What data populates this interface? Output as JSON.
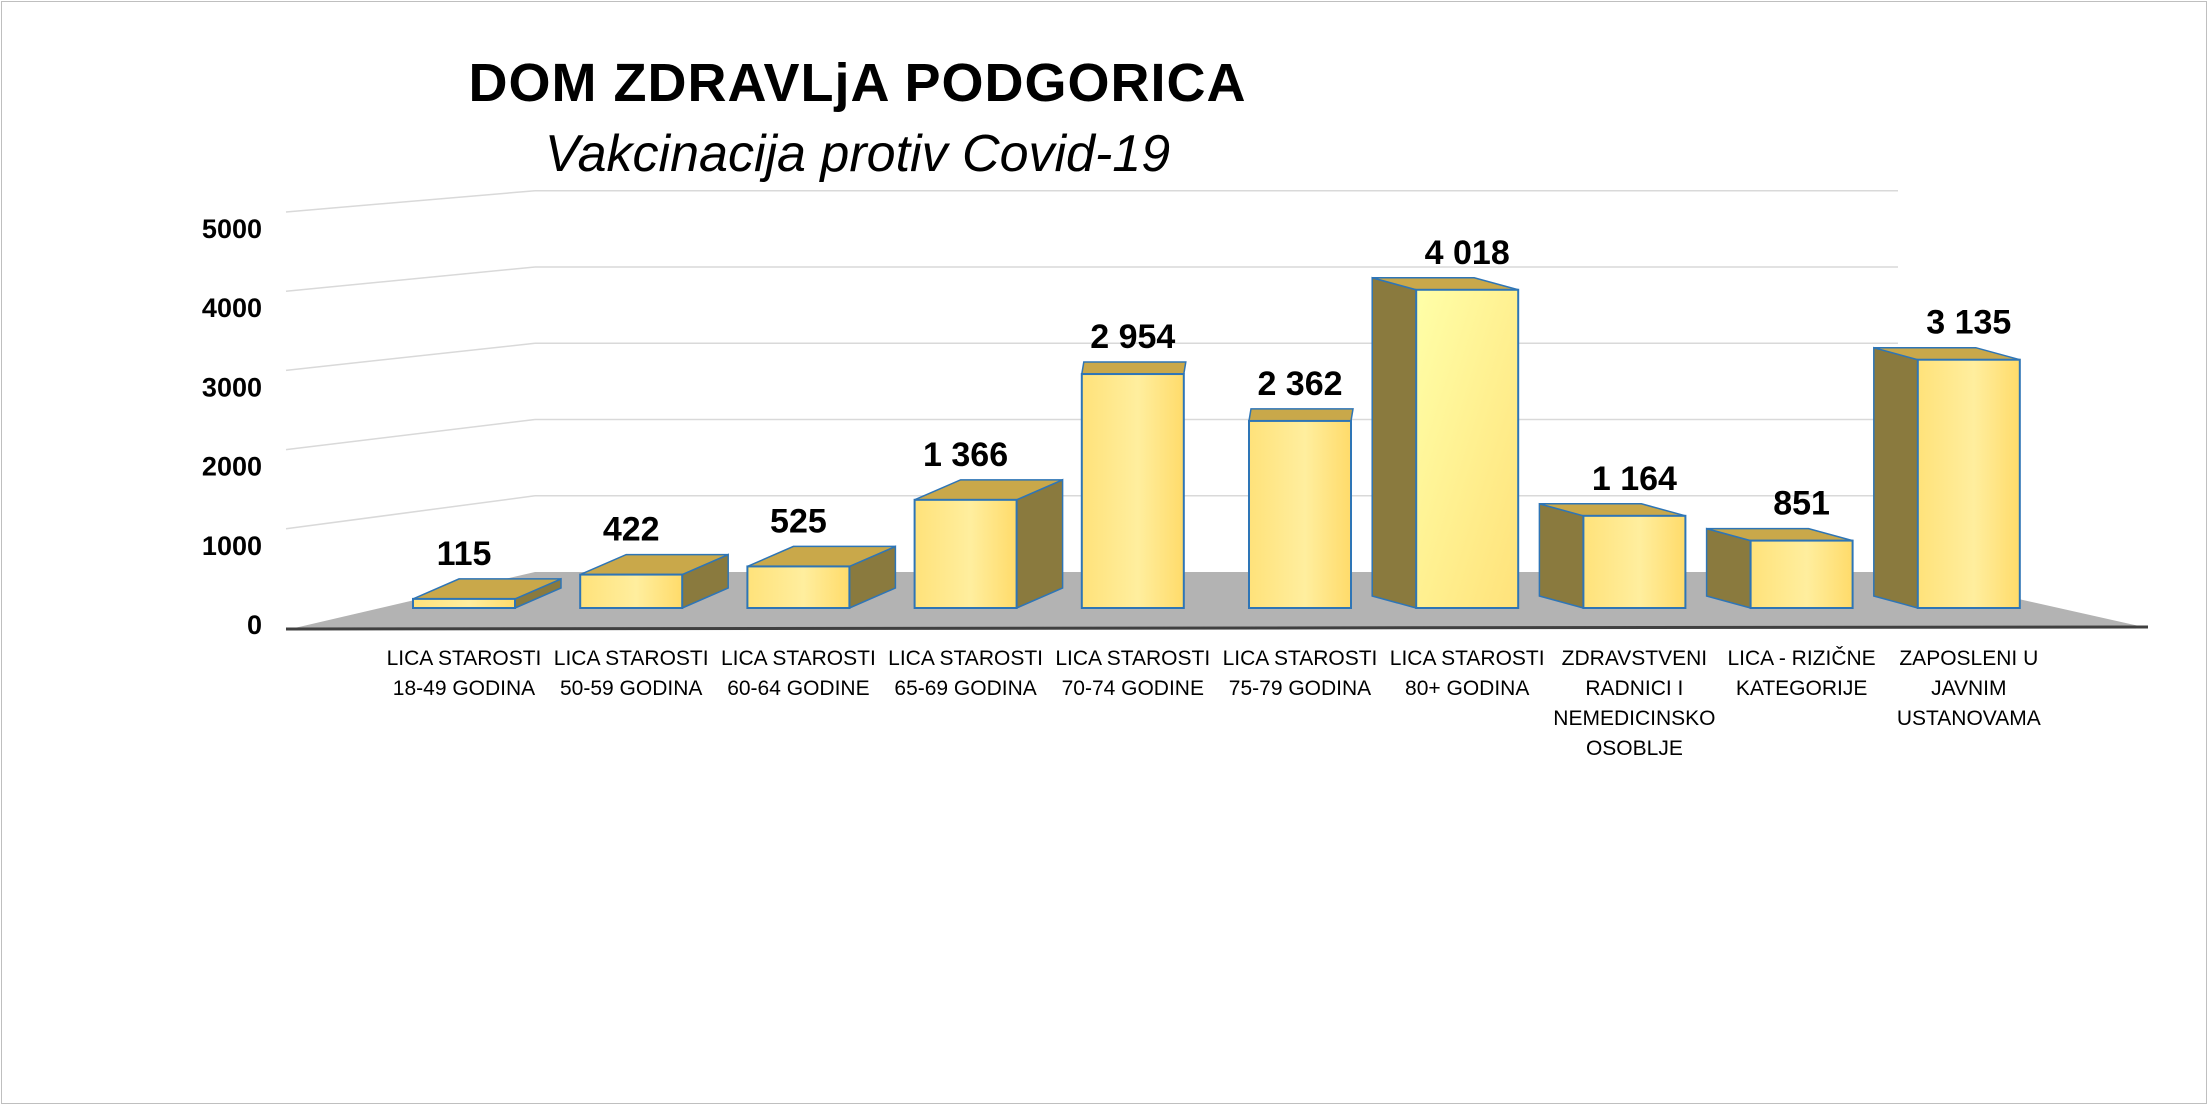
{
  "chart_data": {
    "type": "bar",
    "title": "DOM  ZDRAVLjA  PODGORICA",
    "subtitle": "Vakcinacija  protiv  Covid-19",
    "categories": [
      "LICA STAROSTI\n18-49 GODINA",
      "LICA STAROSTI\n50-59 GODINA",
      "LICA STAROSTI\n60-64 GODINE",
      "LICA STAROSTI\n65-69 GODINA",
      "LICA STAROSTI\n70-74 GODINE",
      "LICA STAROSTI\n75-79 GODINA",
      "LICA STAROSTI\n80+ GODINA",
      "ZDRAVSTVENI\nRADNICI I\nNEMEDICINSKO\nOSOBLJE",
      "LICA - RIZIČNE\nKATEGORIJE",
      "ZAPOSLENI U\nJAVNIM\nUSTANOVAMA"
    ],
    "values": [
      115,
      422,
      525,
      1366,
      2954,
      2362,
      4018,
      1164,
      851,
      3135
    ],
    "value_labels": [
      "115",
      "422",
      "525",
      "1 366",
      "2 954",
      "2 362",
      "4 018",
      "1 164",
      "851",
      "3 135"
    ],
    "ylim": [
      0,
      5000
    ],
    "yticks": [
      "0",
      "1000",
      "2000",
      "3000",
      "4000",
      "5000"
    ],
    "grid": true,
    "style": "3d-column",
    "colors": {
      "bar_front": "#ffe487",
      "bar_side": "#8a7a3e",
      "bar_edge": "#2e75b6",
      "floor": "#b3b3b3",
      "grid": "#d9d9d9"
    }
  }
}
